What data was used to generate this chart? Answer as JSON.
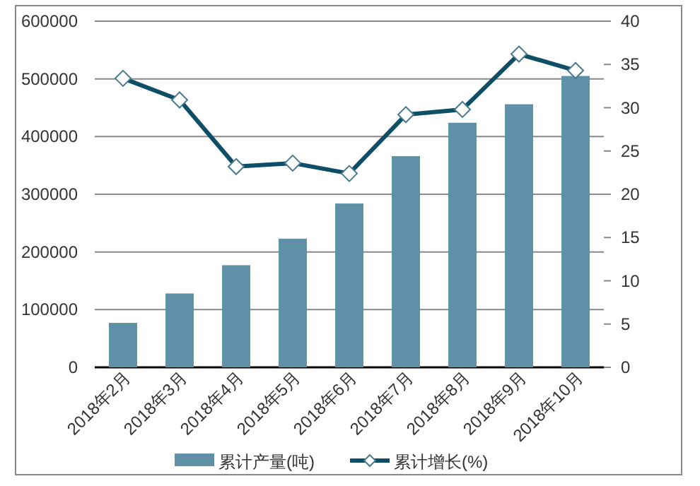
{
  "chart_data": {
    "type": "bar",
    "categories": [
      "2018年2月",
      "2018年3月",
      "2018年4月",
      "2018年5月",
      "2018年6月",
      "2018年7月",
      "2018年8月",
      "2018年9月",
      "2018年10月"
    ],
    "series": [
      {
        "name": "累计产量(吨)",
        "color": "#5f90a8",
        "values": [
          77000,
          128000,
          177000,
          223000,
          284000,
          366000,
          424000,
          456000,
          505000
        ]
      },
      {
        "name": "累计增长(%)",
        "type": "line",
        "axis": "y2",
        "color": "#0e4e66",
        "marker": "diamond",
        "values": [
          33.4,
          30.9,
          23.2,
          23.6,
          22.4,
          29.2,
          29.8,
          36.2,
          34.3
        ]
      }
    ],
    "ylim": [
      0,
      600000
    ],
    "yticks": [
      0,
      100000,
      200000,
      300000,
      400000,
      500000,
      600000
    ],
    "y2lim": [
      0,
      40
    ],
    "y2ticks": [
      0,
      5,
      10,
      15,
      20,
      25,
      30,
      35,
      40
    ],
    "grid": "y",
    "legend": "bottom"
  }
}
